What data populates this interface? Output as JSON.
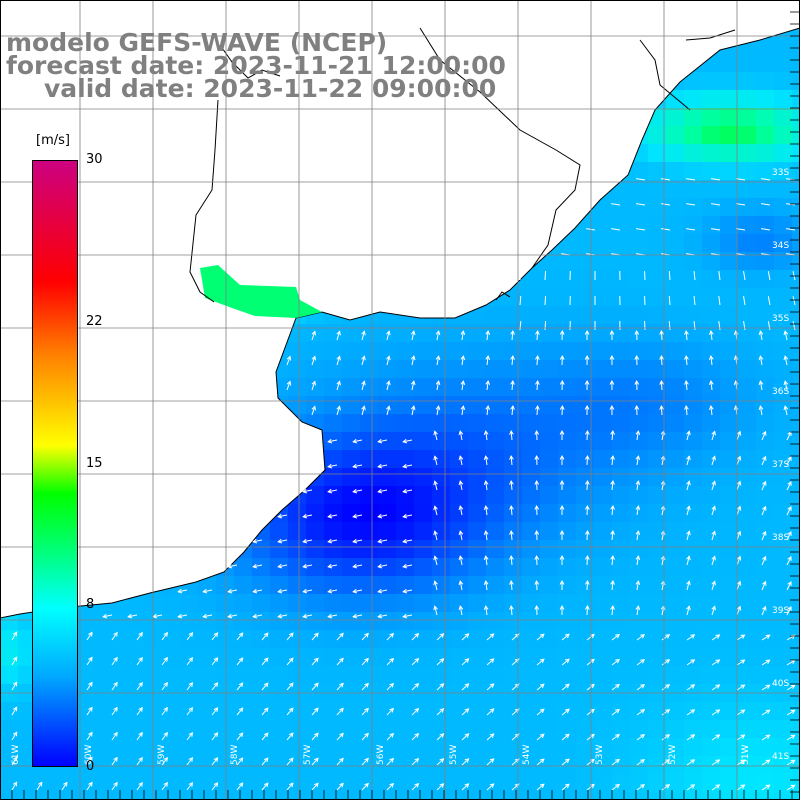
{
  "title": {
    "line1": "modelo GEFS-WAVE (NCEP)",
    "line2": "forecast date: 2023-11-21 12:00:00",
    "line3": "valid date: 2023-11-22 09:00:00"
  },
  "colorbar": {
    "units": "[m/s]",
    "min": 0,
    "max": 30,
    "ticks": [
      {
        "label": "30",
        "value": 30
      },
      {
        "label": "22",
        "value": 22
      },
      {
        "label": "15",
        "value": 15
      },
      {
        "label": "8",
        "value": 8
      },
      {
        "label": "0",
        "value": 0
      }
    ],
    "colors": [
      "#0000ff",
      "#00aaff",
      "#00ffff",
      "#00ff80",
      "#00ff00",
      "#ffff00",
      "#ff8000",
      "#ff0000",
      "#cc0080"
    ]
  },
  "grid_labels": {
    "longitude": [
      "61W",
      "60W",
      "59W",
      "58W",
      "57W",
      "56W",
      "55W",
      "54W",
      "53W",
      "52W",
      "51W"
    ],
    "latitude": [
      "33S",
      "34S",
      "35S",
      "36S",
      "37S",
      "38S",
      "39S",
      "40S",
      "41S"
    ]
  },
  "colors": {
    "land": "#ffffff",
    "coast": "#000000",
    "grid": "#808080",
    "vectors": "#ffffff"
  }
}
